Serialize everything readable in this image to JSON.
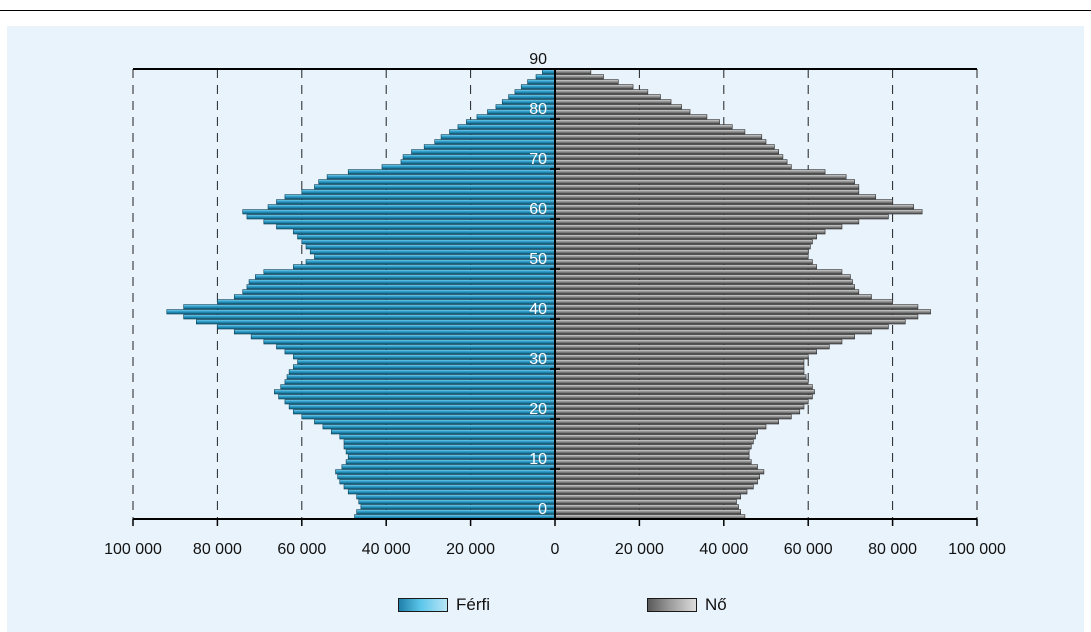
{
  "chart_data": {
    "type": "bar",
    "orientation": "horizontal-population-pyramid",
    "y_axis_labels": [
      "0",
      "10",
      "20",
      "30",
      "40",
      "50",
      "60",
      "70",
      "80",
      "90"
    ],
    "x_axis_labels": [
      "100 000",
      "80 000",
      "60 000",
      "40 000",
      "20 000",
      "0",
      "20 000",
      "40 000",
      "60 000",
      "80 000",
      "100 000"
    ],
    "xlim": [
      -100000,
      100000
    ],
    "ylim": [
      0,
      90
    ],
    "grid": "vertical dashed",
    "legend_position": "bottom",
    "ages": [
      0,
      1,
      2,
      3,
      4,
      5,
      6,
      7,
      8,
      9,
      10,
      11,
      12,
      13,
      14,
      15,
      16,
      17,
      18,
      19,
      20,
      21,
      22,
      23,
      24,
      25,
      26,
      27,
      28,
      29,
      30,
      31,
      32,
      33,
      34,
      35,
      36,
      37,
      38,
      39,
      40,
      41,
      42,
      43,
      44,
      45,
      46,
      47,
      48,
      49,
      50,
      51,
      52,
      53,
      54,
      55,
      56,
      57,
      58,
      59,
      60,
      61,
      62,
      63,
      64,
      65,
      66,
      67,
      68,
      69,
      70,
      71,
      72,
      73,
      74,
      75,
      76,
      77,
      78,
      79,
      80,
      81,
      82,
      83,
      84,
      85,
      86,
      87,
      88,
      89
    ],
    "series": [
      {
        "name": "Férfi",
        "color": "#2ea7d2",
        "values": [
          47500,
          47000,
          46000,
          46500,
          47000,
          49000,
          50000,
          51000,
          51500,
          52000,
          50500,
          49500,
          49000,
          49500,
          50000,
          50000,
          51000,
          53000,
          55000,
          57000,
          60000,
          62000,
          63000,
          64000,
          65500,
          66500,
          65000,
          64000,
          63500,
          63000,
          62000,
          61000,
          62000,
          64000,
          66000,
          69000,
          72000,
          76000,
          80000,
          85000,
          88000,
          92000,
          88000,
          80000,
          76000,
          74000,
          73000,
          72500,
          71000,
          69000,
          62000,
          59000,
          57000,
          58000,
          59000,
          60000,
          61000,
          62000,
          66000,
          69000,
          73000,
          74000,
          68000,
          66000,
          64000,
          60000,
          57000,
          56000,
          54000,
          49000,
          41000,
          36500,
          36000,
          34000,
          31000,
          28500,
          27000,
          25000,
          23000,
          21000,
          18500,
          16000,
          14000,
          12500,
          11000,
          9500,
          8000,
          6500,
          4500,
          3000
        ]
      },
      {
        "name": "Nő",
        "color": "#9a9a9a",
        "values": [
          45000,
          44000,
          43500,
          43000,
          44000,
          45500,
          47000,
          48000,
          48500,
          49500,
          48000,
          46500,
          46000,
          46000,
          46500,
          47000,
          47500,
          48000,
          50000,
          53000,
          56000,
          58000,
          59000,
          60000,
          61000,
          61500,
          61000,
          60000,
          59500,
          59000,
          59000,
          59000,
          60000,
          62000,
          65000,
          68000,
          71000,
          75000,
          79000,
          83000,
          86000,
          89000,
          86000,
          80000,
          75000,
          72000,
          71000,
          70500,
          70000,
          68000,
          62000,
          61000,
          60000,
          60000,
          60500,
          61000,
          62000,
          64000,
          68000,
          72000,
          79000,
          87000,
          85000,
          80000,
          76000,
          72000,
          72000,
          71000,
          69000,
          64000,
          56000,
          55000,
          54000,
          53000,
          52000,
          50000,
          49000,
          45000,
          42000,
          39000,
          36000,
          32000,
          30000,
          27500,
          25000,
          22000,
          18500,
          15000,
          11500,
          8500
        ]
      }
    ]
  }
}
